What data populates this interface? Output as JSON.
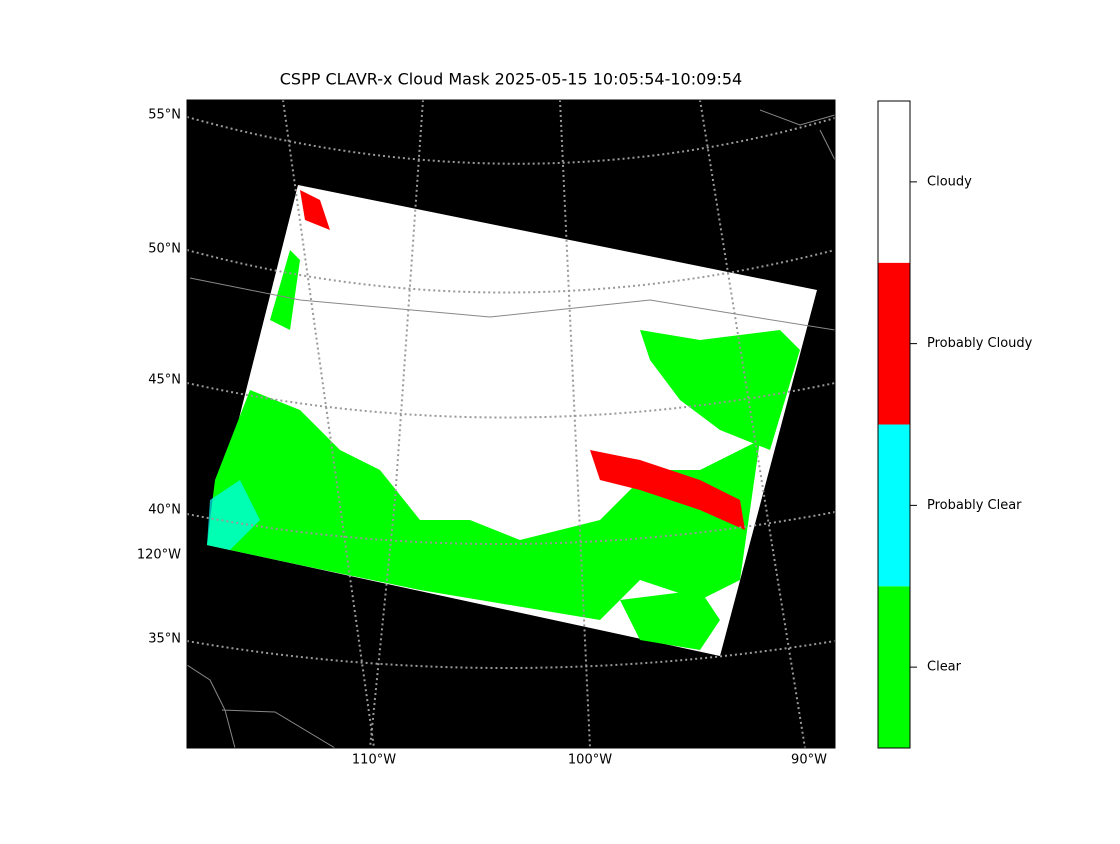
{
  "title": "CSPP CLAVR-x Cloud Mask 2025-05-15 10:05:54-10:09:54",
  "lat_labels": [
    "55°N",
    "50°N",
    "45°N",
    "40°N",
    "35°N"
  ],
  "lon_labels": [
    "120°W",
    "110°W",
    "100°W",
    "90°W"
  ],
  "colorbar": {
    "categories": [
      "Clear",
      "Probably Clear",
      "Probably Cloudy",
      "Cloudy"
    ],
    "colors": [
      "#00ff00",
      "#00ffff",
      "#ff0000",
      "#ffffff"
    ]
  }
}
